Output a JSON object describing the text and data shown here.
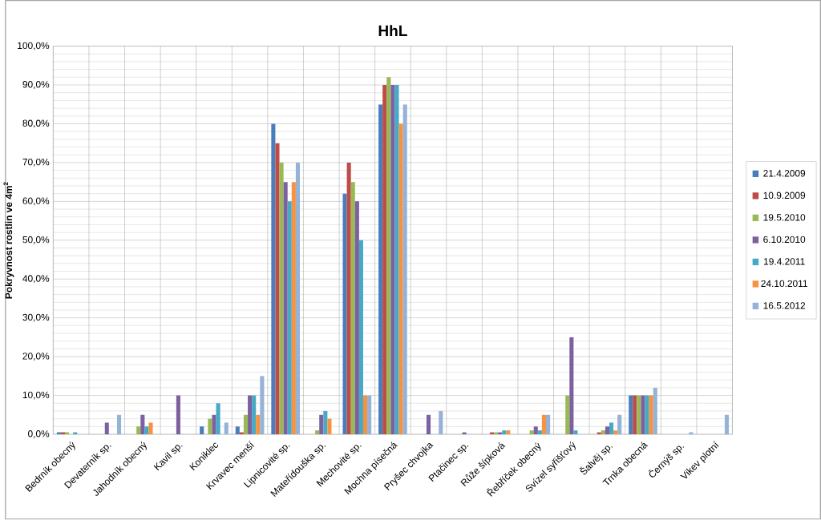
{
  "chart_data": {
    "type": "bar",
    "title": "HhL",
    "ylabel": "Pokryvnost rostlin ve 4m$^{2}$",
    "categories": [
      "Bedrník obecný",
      "Devaterník sp.",
      "Jahodník obecný",
      "Kavil sp.",
      "Koniklec",
      "Krvavec menší",
      "Lipnicovité sp.",
      "Mateřídouška sp.",
      "Mechovité sp.",
      "Mochna písečná",
      "Pryšec chvojka",
      "Ptačinec sp.",
      "Růže šípková",
      "Řebříček obecný",
      "Svízel syřišťový",
      "Šalvěj sp.",
      "Trnka obecná",
      "Černýš sp.",
      "Vikev plotní"
    ],
    "series": [
      {
        "name": "21.4.2009",
        "color": "#4a7ebb",
        "values": [
          0.5,
          null,
          null,
          null,
          2,
          2,
          80,
          null,
          62,
          85,
          null,
          null,
          null,
          null,
          null,
          null,
          10,
          null,
          null
        ]
      },
      {
        "name": "10.9.2009",
        "color": "#be4b48",
        "values": [
          0.5,
          null,
          null,
          null,
          null,
          0.5,
          75,
          null,
          70,
          90,
          null,
          null,
          0.5,
          null,
          null,
          0.5,
          10,
          null,
          null
        ]
      },
      {
        "name": "19.5.2010",
        "color": "#98b954",
        "values": [
          0.5,
          null,
          2,
          null,
          4,
          5,
          70,
          1,
          65,
          92,
          null,
          null,
          0.5,
          1,
          10,
          1,
          10,
          null,
          null
        ]
      },
      {
        "name": "6.10.2010",
        "color": "#7d60a0",
        "values": [
          null,
          3,
          5,
          10,
          5,
          10,
          65,
          5,
          60,
          90,
          5,
          0.5,
          0.5,
          2,
          25,
          2,
          10,
          null,
          null
        ]
      },
      {
        "name": "19.4.2011",
        "color": "#46aac5",
        "values": [
          0.5,
          null,
          2,
          null,
          8,
          10,
          60,
          6,
          50,
          90,
          null,
          null,
          1,
          1,
          1,
          3,
          10,
          null,
          null
        ]
      },
      {
        "name": "24.10.2011",
        "color": "#f69240",
        "values": [
          null,
          null,
          3,
          null,
          null,
          5,
          65,
          4,
          10,
          80,
          null,
          null,
          1,
          5,
          null,
          1,
          10,
          null,
          null
        ]
      },
      {
        "name": "16.5.2012",
        "color": "#95b3d7",
        "values": [
          null,
          5,
          null,
          null,
          3,
          15,
          70,
          null,
          10,
          85,
          6,
          null,
          null,
          5,
          null,
          5,
          12,
          0.5,
          5
        ]
      }
    ],
    "ylim": [
      0,
      100
    ],
    "yticks": [
      {
        "value": 0,
        "label": "0,0%"
      },
      {
        "value": 10,
        "label": "10,0%"
      },
      {
        "value": 20,
        "label": "20,0%"
      },
      {
        "value": 30,
        "label": "30,0%"
      },
      {
        "value": 40,
        "label": "40,0%"
      },
      {
        "value": 50,
        "label": "50,0%"
      },
      {
        "value": 60,
        "label": "60,0%"
      },
      {
        "value": 70,
        "label": "70,0%"
      },
      {
        "value": 80,
        "label": "80,0%"
      },
      {
        "value": 90,
        "label": "90,0%"
      },
      {
        "value": 100,
        "label": "100,0%"
      }
    ],
    "grid": true,
    "legend": "right"
  }
}
